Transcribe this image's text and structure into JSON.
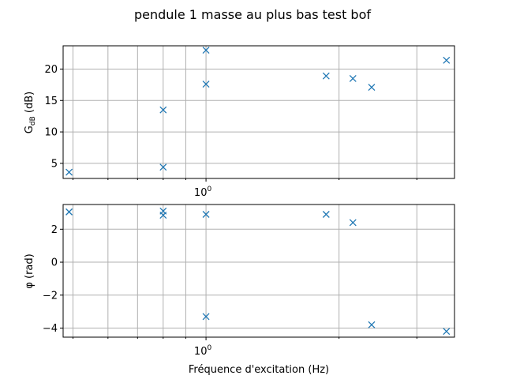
{
  "chart_data": {
    "type": "scatter",
    "title": "pendule 1 masse au plus bas test bof",
    "xscale": "log",
    "xlabel": "Fréquence d'excitation (Hz)",
    "x_major_tick_label": "10^0",
    "xlim": [
      0.475,
      3.65
    ],
    "x": [
      0.49,
      0.8,
      0.8,
      1.0,
      1.0,
      1.87,
      2.15,
      2.37,
      3.5
    ],
    "marker": "x",
    "marker_color": "#1f77b4",
    "grid": true,
    "panels": [
      {
        "name": "gain",
        "ylabel": "G_dB (dB)",
        "ylabel_main": "G",
        "ylabel_sub": "dB",
        "ylabel_unit": " (dB)",
        "ylim": [
          2.6,
          23.7
        ],
        "yticks": [
          5,
          10,
          15,
          20
        ],
        "values": [
          3.6,
          4.4,
          13.5,
          23.0,
          17.6,
          18.9,
          18.5,
          17.1,
          21.4
        ]
      },
      {
        "name": "phase",
        "ylabel": "φ (rad)",
        "ylim": [
          -4.55,
          3.5
        ],
        "yticks": [
          -4,
          -2,
          0,
          2
        ],
        "values": [
          3.05,
          2.85,
          3.1,
          -3.3,
          2.9,
          2.9,
          2.4,
          -3.8,
          -4.2
        ]
      }
    ]
  }
}
